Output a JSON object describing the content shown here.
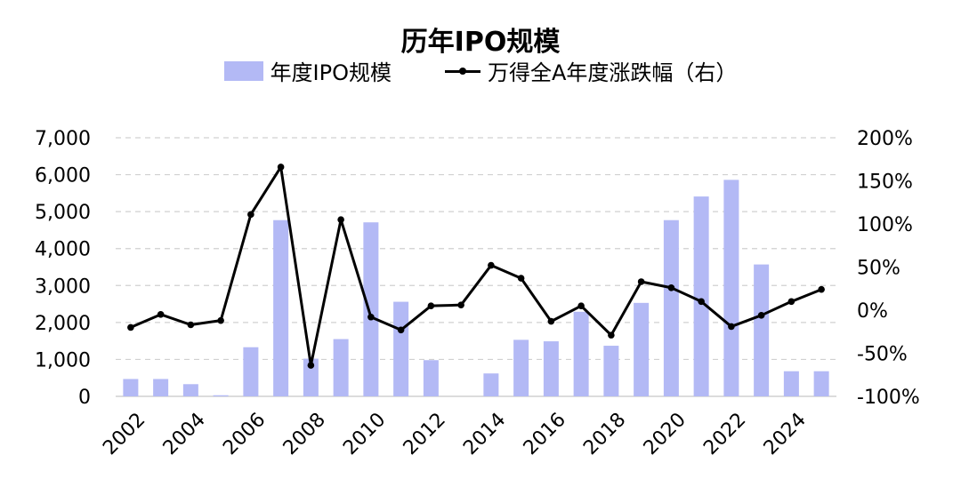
{
  "chart_data": {
    "type": "bar",
    "title": "历年IPO规模",
    "categories": [
      "2002",
      "2003",
      "2004",
      "2005",
      "2006",
      "2007",
      "2008",
      "2009",
      "2010",
      "2011",
      "2012",
      "2013",
      "2014",
      "2015",
      "2016",
      "2017",
      "2018",
      "2019",
      "2020",
      "2021",
      "2022",
      "2023",
      "2024",
      "2025"
    ],
    "x_tick_labels": [
      "2002",
      "2004",
      "2006",
      "2008",
      "2010",
      "2012",
      "2014",
      "2016",
      "2018",
      "2020",
      "2022",
      "2024"
    ],
    "series": [
      {
        "name": "年度IPO规模",
        "type": "bar",
        "axis": "left",
        "color": "#b3b9f5",
        "values": [
          470,
          470,
          330,
          30,
          1330,
          4770,
          1020,
          1550,
          4710,
          2560,
          980,
          0,
          620,
          1530,
          1490,
          2290,
          1370,
          2530,
          4770,
          5410,
          5860,
          3570,
          680,
          680
        ]
      },
      {
        "name": "万得全A年度涨跌幅（右）",
        "type": "line",
        "axis": "right",
        "color": "#000000",
        "values": [
          -20,
          -5,
          -17,
          -12,
          111,
          166,
          -64,
          105,
          -8,
          -23,
          5,
          6,
          52,
          37,
          -13,
          5,
          -29,
          33,
          26,
          10,
          -19,
          -6,
          10,
          24
        ]
      }
    ],
    "y_left": {
      "min": 0,
      "max": 7000,
      "ticks": [
        "0",
        "1,000",
        "2,000",
        "3,000",
        "4,000",
        "5,000",
        "6,000",
        "7,000"
      ]
    },
    "y_right": {
      "min": -100,
      "max": 200,
      "ticks": [
        "-100%",
        "-50%",
        "0%",
        "50%",
        "100%",
        "150%",
        "200%"
      ]
    },
    "grid": "dashed horizontal",
    "legend_position": "top"
  },
  "legend": {
    "bar_label": "年度IPO规模",
    "line_label": "万得全A年度涨跌幅（右）"
  }
}
